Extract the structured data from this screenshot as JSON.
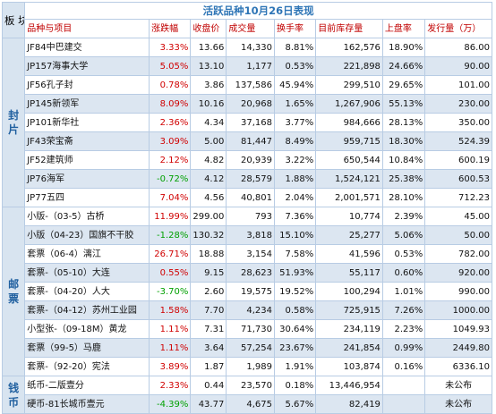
{
  "title": "活跃品种10月26日表现",
  "plate_header": "板块",
  "headers": [
    "品种与项目",
    "涨跌幅",
    "收盘价",
    "成交量",
    "换手率",
    "目前库存量",
    "上盘率",
    "发行量（万）"
  ],
  "sections": [
    {
      "label": "封片",
      "rows": [
        {
          "name": "JF84中巴建交",
          "change": "3.33%",
          "dir": "up",
          "close": "13.66",
          "volume": "14,330",
          "turnover": "8.81%",
          "inventory": "162,576",
          "listing": "18.90%",
          "issue": "86.00"
        },
        {
          "name": "JP157海事大学",
          "change": "5.05%",
          "dir": "up",
          "close": "13.10",
          "volume": "1,177",
          "turnover": "0.53%",
          "inventory": "221,898",
          "listing": "24.66%",
          "issue": "90.00"
        },
        {
          "name": "JF56孔子封",
          "change": "0.78%",
          "dir": "up",
          "close": "3.86",
          "volume": "137,586",
          "turnover": "45.94%",
          "inventory": "299,510",
          "listing": "29.65%",
          "issue": "101.00"
        },
        {
          "name": "JP145新领军",
          "change": "8.09%",
          "dir": "up",
          "close": "10.16",
          "volume": "20,968",
          "turnover": "1.65%",
          "inventory": "1,267,906",
          "listing": "55.13%",
          "issue": "230.00"
        },
        {
          "name": "JP101新华社",
          "change": "2.36%",
          "dir": "up",
          "close": "4.34",
          "volume": "37,168",
          "turnover": "3.77%",
          "inventory": "984,666",
          "listing": "28.13%",
          "issue": "350.00"
        },
        {
          "name": "JF43荣宝斋",
          "change": "3.09%",
          "dir": "up",
          "close": "5.00",
          "volume": "81,447",
          "turnover": "8.49%",
          "inventory": "959,715",
          "listing": "18.30%",
          "issue": "524.39"
        },
        {
          "name": "JF52建筑师",
          "change": "2.12%",
          "dir": "up",
          "close": "4.82",
          "volume": "20,939",
          "turnover": "3.22%",
          "inventory": "650,544",
          "listing": "10.84%",
          "issue": "600.19"
        },
        {
          "name": "JP76海军",
          "change": "-0.72%",
          "dir": "down",
          "close": "4.12",
          "volume": "28,579",
          "turnover": "1.88%",
          "inventory": "1,524,121",
          "listing": "25.38%",
          "issue": "600.53"
        },
        {
          "name": "JP77五四",
          "change": "7.04%",
          "dir": "up",
          "close": "4.56",
          "volume": "40,801",
          "turnover": "2.04%",
          "inventory": "2,001,571",
          "listing": "28.10%",
          "issue": "712.23"
        }
      ]
    },
    {
      "label": "邮票",
      "rows": [
        {
          "name": "小版-（03-5）古桥",
          "change": "11.99%",
          "dir": "up",
          "close": "299.00",
          "volume": "793",
          "turnover": "7.36%",
          "inventory": "10,774",
          "listing": "2.39%",
          "issue": "45.00"
        },
        {
          "name": "小版（04-23）国旗不干胶",
          "change": "-1.28%",
          "dir": "down",
          "close": "130.32",
          "volume": "3,818",
          "turnover": "15.10%",
          "inventory": "25,277",
          "listing": "5.06%",
          "issue": "50.00"
        },
        {
          "name": "套票（06-4）漓江",
          "change": "26.71%",
          "dir": "up",
          "close": "18.88",
          "volume": "3,154",
          "turnover": "7.58%",
          "inventory": "41,596",
          "listing": "0.53%",
          "issue": "782.00"
        },
        {
          "name": "套票-（05-10）大连",
          "change": "0.55%",
          "dir": "up",
          "close": "9.15",
          "volume": "28,623",
          "turnover": "51.93%",
          "inventory": "55,117",
          "listing": "0.60%",
          "issue": "920.00"
        },
        {
          "name": "套票-（04-20）人大",
          "change": "-3.70%",
          "dir": "down",
          "close": "2.60",
          "volume": "19,575",
          "turnover": "19.52%",
          "inventory": "100,294",
          "listing": "1.01%",
          "issue": "990.00"
        },
        {
          "name": "套票-（04-12）苏州工业园",
          "change": "1.58%",
          "dir": "up",
          "close": "7.70",
          "volume": "4,234",
          "turnover": "0.58%",
          "inventory": "725,915",
          "listing": "7.26%",
          "issue": "1000.00"
        },
        {
          "name": "小型张-（09-18M）黄龙",
          "change": "1.11%",
          "dir": "up",
          "close": "7.31",
          "volume": "71,730",
          "turnover": "30.64%",
          "inventory": "234,119",
          "listing": "2.23%",
          "issue": "1049.93"
        },
        {
          "name": "套票（99-5）马鹿",
          "change": "1.11%",
          "dir": "up",
          "close": "3.64",
          "volume": "57,254",
          "turnover": "23.67%",
          "inventory": "241,854",
          "listing": "0.99%",
          "issue": "2449.80"
        },
        {
          "name": "套票-（92-20）宪法",
          "change": "3.89%",
          "dir": "up",
          "close": "1.87",
          "volume": "1,989",
          "turnover": "1.91%",
          "inventory": "103,874",
          "listing": "0.16%",
          "issue": "6336.10"
        }
      ]
    },
    {
      "label": "钱币",
      "rows": [
        {
          "name": "纸币-二版壹分",
          "change": "2.33%",
          "dir": "up",
          "close": "0.44",
          "volume": "23,570",
          "turnover": "0.18%",
          "inventory": "13,446,954",
          "listing": "",
          "issue": "未公布"
        },
        {
          "name": "硬币-81长城币壹元",
          "change": "-4.39%",
          "dir": "down",
          "close": "43.77",
          "volume": "4,675",
          "turnover": "5.67%",
          "inventory": "82,419",
          "listing": "",
          "issue": "未公布"
        }
      ]
    }
  ],
  "colors": {
    "up": "#d00000",
    "down": "#00a000",
    "header": "#c00000",
    "title": "#2e75b6",
    "section_bg": "#d8e4f0",
    "alt_row": "#dce6f1"
  }
}
